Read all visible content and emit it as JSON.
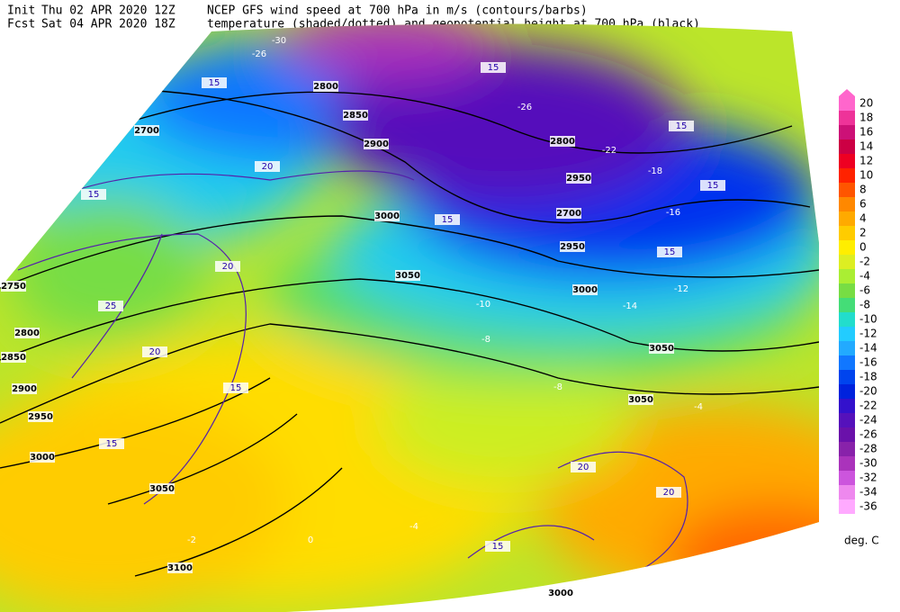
{
  "header": {
    "init_label": "Init",
    "init_time": "Thu 02 APR 2020 12Z",
    "fcst_label": "Fcst",
    "fcst_time": "Sat 04 APR 2020 18Z",
    "title_line1": "NCEP GFS wind speed at 700 hPa in m/s (contours/barbs)",
    "title_line2": "temperature (shaded/dotted) and geopotential height at 700 hPa (black)"
  },
  "map": {
    "height_labels": [
      "2700",
      "2800",
      "2850",
      "2900",
      "2800",
      "2950",
      "2700",
      "2950",
      "3000",
      "3050",
      "3000",
      "3050",
      "3050",
      "2750",
      "2800",
      "2850",
      "2900",
      "2950",
      "3000",
      "3050",
      "3100",
      "3000"
    ],
    "wind_labels": [
      "15",
      "20",
      "15",
      "20",
      "25",
      "20",
      "15",
      "15",
      "15",
      "15",
      "15",
      "15",
      "15",
      "20",
      "15",
      "20"
    ],
    "temperature_labels": [
      "-30",
      "-26",
      "-16",
      "-12",
      "-8",
      "-8",
      "-4",
      "-4",
      "0",
      "-2",
      "-10",
      "-14",
      "-18",
      "-22",
      "-26"
    ]
  },
  "colorbar": {
    "levels": [
      20,
      18,
      16,
      14,
      12,
      10,
      8,
      6,
      4,
      2,
      0,
      -2,
      -4,
      -6,
      -8,
      -10,
      -12,
      -14,
      -16,
      -18,
      -20,
      -22,
      -24,
      -26,
      -28,
      -30,
      -32,
      -34,
      -36
    ],
    "colors": [
      "#ff66cc",
      "#ee3399",
      "#cc1177",
      "#cc0044",
      "#ee0022",
      "#ff2200",
      "#ff5500",
      "#ff8800",
      "#ffaa00",
      "#ffcc00",
      "#ffee00",
      "#ddee22",
      "#aaee33",
      "#77dd44",
      "#44dd77",
      "#22ddcc",
      "#22ccff",
      "#22aaff",
      "#1177ff",
      "#0044ee",
      "#0022dd",
      "#3311cc",
      "#5511bb",
      "#6a11aa",
      "#8822aa",
      "#aa33bb",
      "#cc55dd",
      "#ee88ee",
      "#ffaaff"
    ],
    "unit": "deg. C"
  }
}
